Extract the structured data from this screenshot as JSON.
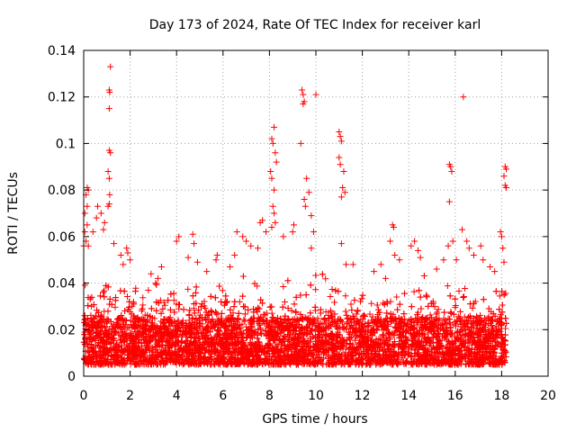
{
  "chart_data": {
    "type": "scatter",
    "title": "Day 173 of 2024, Rate Of TEC Index for receiver karl",
    "xlabel": "GPS time / hours",
    "ylabel": "ROTI / TECUs",
    "xlim": [
      0,
      20
    ],
    "ylim": [
      0,
      0.14
    ],
    "xticks": [
      0,
      2,
      4,
      6,
      8,
      10,
      12,
      14,
      16,
      18,
      20
    ],
    "yticks": [
      0,
      0.02,
      0.04,
      0.06,
      0.08,
      0.1,
      0.12,
      0.14
    ],
    "xtick_labels": [
      "0",
      "2",
      "4",
      "6",
      "8",
      "10",
      "12",
      "14",
      "16",
      "18",
      "20"
    ],
    "ytick_labels": [
      "0",
      "0.02",
      "0.04",
      "0.06",
      "0.08",
      "0.1",
      "0.12",
      "0.14"
    ],
    "grid": true,
    "marker": "+",
    "marker_color": "#ff0000",
    "data_x_range": [
      0,
      18.2
    ],
    "baseline_band": [
      0.005,
      0.025
    ],
    "series": [
      {
        "name": "ROTI",
        "points": [
          [
            1.15,
            0.133
          ],
          [
            1.1,
            0.123
          ],
          [
            1.12,
            0.122
          ],
          [
            1.1,
            0.115
          ],
          [
            1.1,
            0.097
          ],
          [
            1.15,
            0.096
          ],
          [
            1.05,
            0.088
          ],
          [
            1.1,
            0.085
          ],
          [
            1.12,
            0.078
          ],
          [
            1.05,
            0.073
          ],
          [
            1.1,
            0.074
          ],
          [
            0.15,
            0.081
          ],
          [
            0.2,
            0.08
          ],
          [
            0.1,
            0.078
          ],
          [
            0.15,
            0.073
          ],
          [
            0.05,
            0.07
          ],
          [
            0.15,
            0.065
          ],
          [
            0.05,
            0.062
          ],
          [
            0.1,
            0.058
          ],
          [
            0.0,
            0.056
          ],
          [
            0.2,
            0.056
          ],
          [
            0.4,
            0.062
          ],
          [
            0.55,
            0.068
          ],
          [
            0.6,
            0.073
          ],
          [
            0.75,
            0.07
          ],
          [
            0.9,
            0.066
          ],
          [
            0.85,
            0.063
          ],
          [
            1.3,
            0.057
          ],
          [
            1.6,
            0.052
          ],
          [
            1.85,
            0.055
          ],
          [
            1.9,
            0.053
          ],
          [
            2.0,
            0.05
          ],
          [
            1.7,
            0.048
          ],
          [
            2.9,
            0.044
          ],
          [
            3.2,
            0.042
          ],
          [
            3.35,
            0.047
          ],
          [
            3.1,
            0.04
          ],
          [
            4.0,
            0.058
          ],
          [
            4.1,
            0.06
          ],
          [
            4.7,
            0.061
          ],
          [
            4.75,
            0.057
          ],
          [
            4.5,
            0.051
          ],
          [
            4.9,
            0.049
          ],
          [
            5.3,
            0.045
          ],
          [
            5.7,
            0.05
          ],
          [
            5.75,
            0.052
          ],
          [
            6.3,
            0.047
          ],
          [
            6.5,
            0.052
          ],
          [
            6.6,
            0.062
          ],
          [
            6.85,
            0.06
          ],
          [
            7.0,
            0.058
          ],
          [
            7.2,
            0.056
          ],
          [
            7.6,
            0.066
          ],
          [
            7.7,
            0.067
          ],
          [
            7.85,
            0.062
          ],
          [
            7.5,
            0.055
          ],
          [
            8.2,
            0.107
          ],
          [
            8.1,
            0.102
          ],
          [
            8.15,
            0.1
          ],
          [
            8.25,
            0.096
          ],
          [
            8.3,
            0.092
          ],
          [
            8.05,
            0.088
          ],
          [
            8.1,
            0.085
          ],
          [
            8.2,
            0.08
          ],
          [
            8.15,
            0.073
          ],
          [
            8.2,
            0.07
          ],
          [
            8.25,
            0.066
          ],
          [
            8.1,
            0.064
          ],
          [
            8.6,
            0.06
          ],
          [
            9.0,
            0.062
          ],
          [
            9.05,
            0.065
          ],
          [
            9.4,
            0.123
          ],
          [
            9.45,
            0.121
          ],
          [
            9.5,
            0.118
          ],
          [
            9.45,
            0.117
          ],
          [
            9.35,
            0.1
          ],
          [
            9.6,
            0.085
          ],
          [
            9.7,
            0.079
          ],
          [
            9.5,
            0.076
          ],
          [
            9.55,
            0.073
          ],
          [
            9.8,
            0.069
          ],
          [
            9.9,
            0.062
          ],
          [
            9.8,
            0.055
          ],
          [
            10.0,
            0.121
          ],
          [
            11.0,
            0.105
          ],
          [
            11.05,
            0.103
          ],
          [
            11.1,
            0.101
          ],
          [
            11.0,
            0.094
          ],
          [
            11.05,
            0.091
          ],
          [
            11.2,
            0.088
          ],
          [
            11.15,
            0.081
          ],
          [
            11.25,
            0.079
          ],
          [
            11.1,
            0.077
          ],
          [
            11.1,
            0.057
          ],
          [
            11.3,
            0.048
          ],
          [
            11.6,
            0.048
          ],
          [
            12.5,
            0.045
          ],
          [
            12.8,
            0.048
          ],
          [
            13.0,
            0.042
          ],
          [
            13.3,
            0.065
          ],
          [
            13.35,
            0.064
          ],
          [
            13.2,
            0.058
          ],
          [
            13.4,
            0.052
          ],
          [
            13.6,
            0.05
          ],
          [
            14.1,
            0.056
          ],
          [
            14.25,
            0.058
          ],
          [
            14.4,
            0.054
          ],
          [
            14.5,
            0.051
          ],
          [
            15.2,
            0.046
          ],
          [
            15.5,
            0.05
          ],
          [
            15.75,
            0.091
          ],
          [
            15.8,
            0.09
          ],
          [
            15.85,
            0.088
          ],
          [
            15.75,
            0.075
          ],
          [
            15.9,
            0.058
          ],
          [
            15.7,
            0.056
          ],
          [
            16.05,
            0.05
          ],
          [
            16.35,
            0.12
          ],
          [
            16.3,
            0.063
          ],
          [
            16.5,
            0.058
          ],
          [
            16.6,
            0.055
          ],
          [
            16.8,
            0.052
          ],
          [
            17.1,
            0.056
          ],
          [
            17.2,
            0.05
          ],
          [
            17.5,
            0.047
          ],
          [
            17.7,
            0.045
          ],
          [
            17.95,
            0.062
          ],
          [
            18.0,
            0.06
          ],
          [
            18.05,
            0.055
          ],
          [
            18.15,
            0.09
          ],
          [
            18.2,
            0.089
          ],
          [
            18.1,
            0.086
          ],
          [
            18.15,
            0.082
          ],
          [
            18.2,
            0.081
          ],
          [
            18.1,
            0.049
          ]
        ]
      }
    ]
  }
}
